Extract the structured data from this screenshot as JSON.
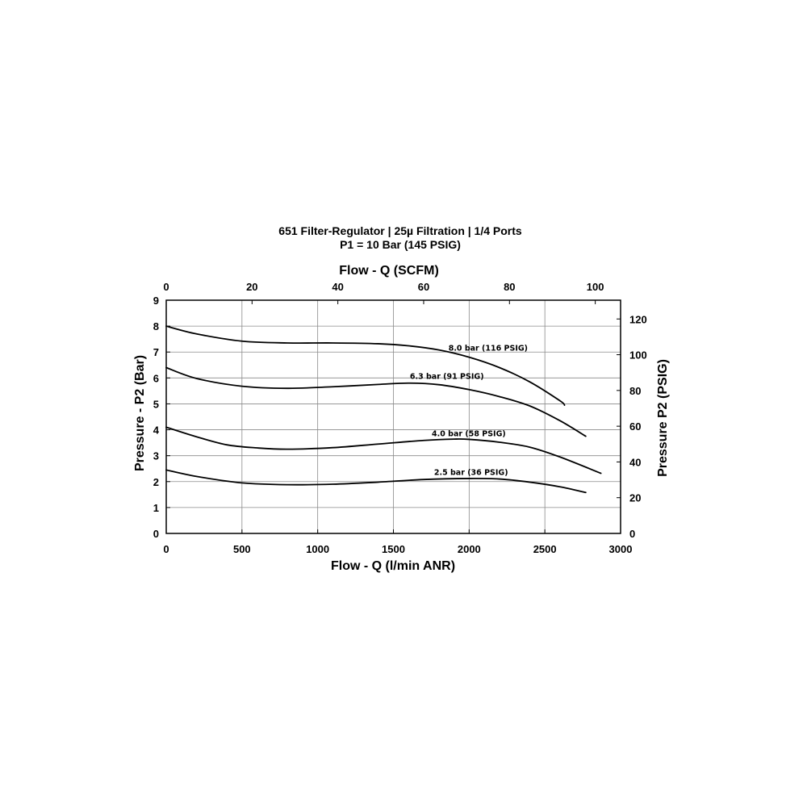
{
  "chart_data": {
    "type": "line",
    "title": "651 Filter-Regulator | 25µ Filtration | 1/4 Ports",
    "subtitle": "P1 = 10 Bar (145 PSIG)",
    "xlabel": "Flow - Q (l/min ANR)",
    "x2label": "Flow - Q (SCFM)",
    "ylabel": "Pressure - P2 (Bar)",
    "y2label": "Pressure P2 (PSIG)",
    "xlim": [
      0,
      3000
    ],
    "ylim": [
      0,
      9
    ],
    "x2lim": [
      0,
      105.9
    ],
    "y2lim": [
      0,
      130.5
    ],
    "x_ticks": [
      "0",
      "500",
      "1000",
      "1500",
      "2000",
      "2500",
      "3000"
    ],
    "y_ticks": [
      "0",
      "1",
      "2",
      "3",
      "4",
      "5",
      "6",
      "7",
      "8",
      "9"
    ],
    "x2_ticks": [
      "0",
      "20",
      "40",
      "60",
      "80",
      "100"
    ],
    "y2_ticks": [
      "0",
      "20",
      "40",
      "60",
      "80",
      "100",
      "120"
    ],
    "grid": true,
    "series": [
      {
        "name": "8.0 bar (116 PSIG)",
        "x": [
          0,
          200,
          500,
          800,
          1100,
          1400,
          1600,
          1800,
          2000,
          2200,
          2400,
          2600,
          2630
        ],
        "y": [
          8.0,
          7.7,
          7.42,
          7.35,
          7.35,
          7.32,
          7.24,
          7.08,
          6.8,
          6.4,
          5.85,
          5.12,
          4.95
        ]
      },
      {
        "name": "6.3 bar (91 PSIG)",
        "x": [
          0,
          200,
          500,
          800,
          1100,
          1400,
          1600,
          1800,
          2000,
          2200,
          2400,
          2600,
          2770
        ],
        "y": [
          6.4,
          5.98,
          5.68,
          5.6,
          5.66,
          5.75,
          5.8,
          5.74,
          5.55,
          5.28,
          4.92,
          4.35,
          3.75
        ]
      },
      {
        "name": "4.0 bar (58 PSIG)",
        "x": [
          0,
          200,
          400,
          600,
          800,
          1100,
          1400,
          1700,
          1900,
          2000,
          2200,
          2400,
          2600,
          2870
        ],
        "y": [
          4.1,
          3.73,
          3.42,
          3.3,
          3.25,
          3.31,
          3.45,
          3.59,
          3.64,
          3.63,
          3.52,
          3.33,
          2.95,
          2.32
        ]
      },
      {
        "name": "2.5 bar (36 PSIG)",
        "x": [
          0,
          200,
          500,
          800,
          1100,
          1400,
          1700,
          2000,
          2200,
          2400,
          2600,
          2770
        ],
        "y": [
          2.45,
          2.2,
          1.95,
          1.88,
          1.9,
          1.98,
          2.08,
          2.12,
          2.1,
          1.98,
          1.8,
          1.58
        ]
      }
    ]
  }
}
